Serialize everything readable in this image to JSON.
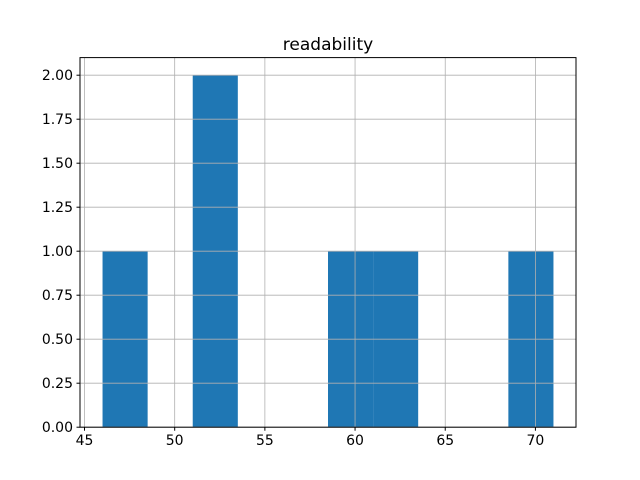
{
  "figure": {
    "background": "#ffffff"
  },
  "chart_data": {
    "type": "bar",
    "subtype": "histogram",
    "title": "readability",
    "xlabel": "",
    "ylabel": "",
    "bin_edges": [
      46.0,
      48.5,
      51.0,
      53.5,
      56.0,
      58.5,
      61.0,
      63.5,
      66.0,
      68.5,
      71.0
    ],
    "counts": [
      1,
      0,
      2,
      0,
      0,
      1,
      1,
      0,
      0,
      1
    ],
    "xlim": [
      44.75,
      72.25
    ],
    "ylim": [
      0,
      2.1
    ],
    "xticks": [
      {
        "value": 45,
        "label": "45"
      },
      {
        "value": 50,
        "label": "50"
      },
      {
        "value": 55,
        "label": "55"
      },
      {
        "value": 60,
        "label": "60"
      },
      {
        "value": 65,
        "label": "65"
      },
      {
        "value": 70,
        "label": "70"
      }
    ],
    "yticks": [
      {
        "value": 0.0,
        "label": "0.00"
      },
      {
        "value": 0.25,
        "label": "0.25"
      },
      {
        "value": 0.5,
        "label": "0.50"
      },
      {
        "value": 0.75,
        "label": "0.75"
      },
      {
        "value": 1.0,
        "label": "1.00"
      },
      {
        "value": 1.25,
        "label": "1.25"
      },
      {
        "value": 1.5,
        "label": "1.50"
      },
      {
        "value": 1.75,
        "label": "1.75"
      },
      {
        "value": 2.0,
        "label": "2.00"
      }
    ],
    "grid": true,
    "grid_on_top_of_bars": true,
    "legend": false,
    "bar_color": "#1f77b4",
    "grid_color": "#b0b0b0",
    "axis_color": "#000000",
    "text_color": "#000000"
  }
}
